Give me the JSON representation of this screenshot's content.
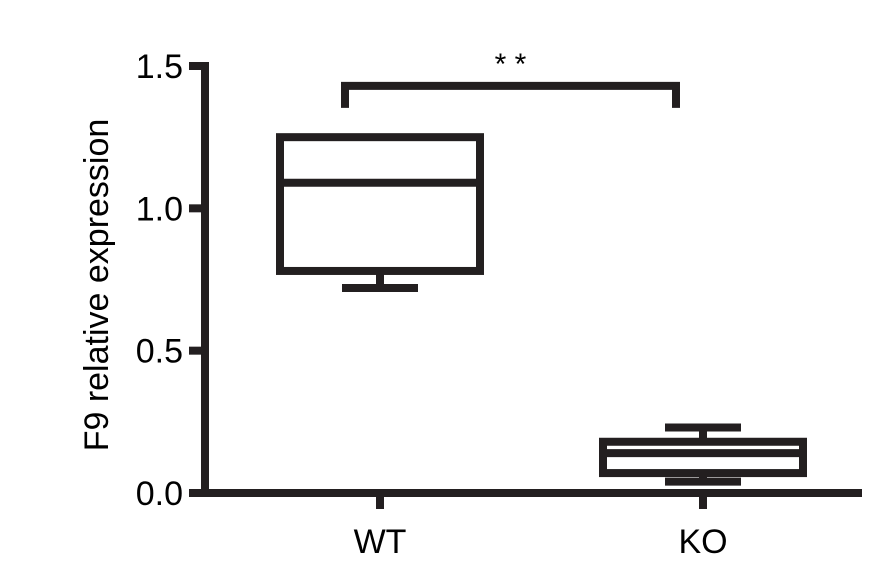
{
  "chart_data": {
    "type": "box",
    "ylabel": "F9 relative expression",
    "xlabel": "",
    "ylim": [
      0,
      1.5
    ],
    "y_ticks": [
      0.0,
      0.5,
      1.0,
      1.5
    ],
    "y_tick_labels": [
      "0.0",
      "0.5",
      "1.0",
      "1.5"
    ],
    "categories": [
      "WT",
      "KO"
    ],
    "boxes": [
      {
        "name": "WT",
        "min": 0.72,
        "q1": 0.78,
        "median": 1.09,
        "q3": 1.25,
        "max": 1.25
      },
      {
        "name": "KO",
        "min": 0.04,
        "q1": 0.07,
        "median": 0.14,
        "q3": 0.18,
        "max": 0.23
      }
    ],
    "significance": {
      "label": "* *",
      "between": [
        "WT",
        "KO"
      ],
      "y": 1.43
    },
    "grid": false,
    "colors": {
      "stroke": "#231f20",
      "background": "#ffffff"
    }
  }
}
